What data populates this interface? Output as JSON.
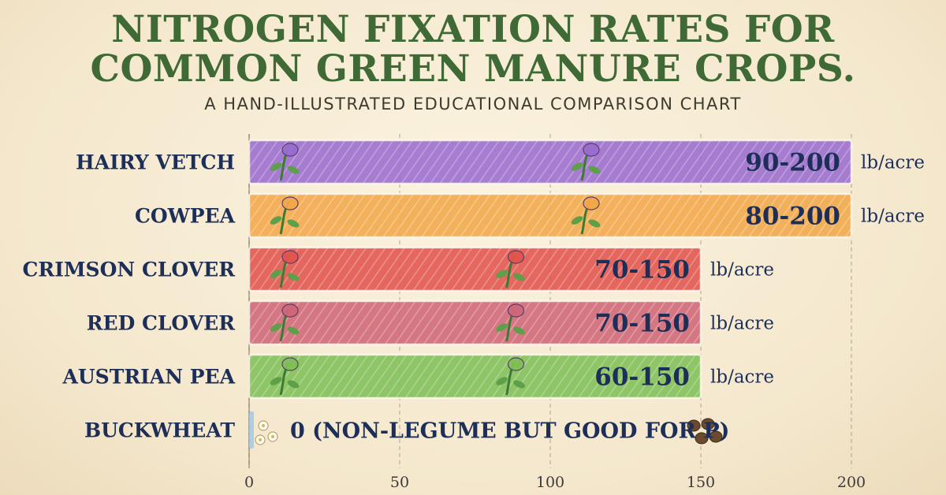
{
  "header": {
    "title_line1": "NITROGEN FIXATION RATES FOR",
    "title_line2": "COMMON GREEN MANURE CROPS.",
    "subtitle": "A HAND-ILLUSTRATED EDUCATIONAL COMPARISON CHART"
  },
  "chart_data": {
    "type": "bar",
    "title": "NITROGEN FIXATION RATES FOR COMMON GREEN MANURE CROPS.",
    "subtitle": "A HAND-ILLUSTRATED EDUCATIONAL COMPARISON CHART",
    "orientation": "horizontal",
    "categories": [
      "HAIRY VETCH",
      "COWPEA",
      "CRIMSON CLOVER",
      "RED CLOVER",
      "AUSTRIAN PEA",
      "BUCKWHEAT"
    ],
    "values": [
      {
        "low": 90,
        "high": 200
      },
      {
        "low": 80,
        "high": 200
      },
      {
        "low": 70,
        "high": 150
      },
      {
        "low": 70,
        "high": 150
      },
      {
        "low": 60,
        "high": 150
      },
      {
        "low": 0,
        "high": 0
      }
    ],
    "value_labels": [
      "90-200",
      "80-200",
      "70-150",
      "70-150",
      "60-150",
      "0 (NON-LEGUME BUT GOOD FOR P)"
    ],
    "unit_labels": [
      "lb/acre",
      "lb/acre",
      "lb/acre",
      "lb/acre",
      "lb/acre",
      ""
    ],
    "colors": [
      "#9a6ccf",
      "#f2a74a",
      "#e0544d",
      "#cf6677",
      "#7fbf56",
      "#9fc7e6"
    ],
    "xticks": [
      0,
      50,
      100,
      150,
      200
    ],
    "xlim": [
      0,
      200
    ],
    "xlabel": "",
    "ylabel": "",
    "grid": true,
    "legend": "none"
  }
}
